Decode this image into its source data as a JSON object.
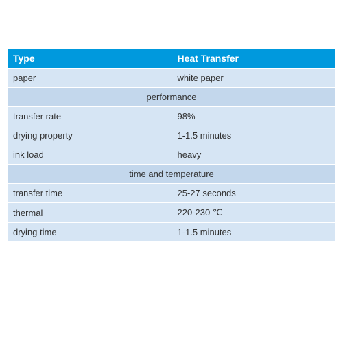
{
  "table": {
    "header": {
      "col1": "Type",
      "col2": "Heat Transfer"
    },
    "rows": [
      {
        "type": "data",
        "label": "paper",
        "value": "white paper"
      },
      {
        "type": "section",
        "label": "performance"
      },
      {
        "type": "data",
        "label": "transfer rate",
        "value": "98%"
      },
      {
        "type": "data",
        "label": "drying property",
        "value": "1-1.5 minutes"
      },
      {
        "type": "data",
        "label": "ink load",
        "value": "heavy"
      },
      {
        "type": "section",
        "label": "time and temperature"
      },
      {
        "type": "data",
        "label": "transfer time",
        "value": "25-27 seconds"
      },
      {
        "type": "data",
        "label": "thermal",
        "value": "220-230 ℃"
      },
      {
        "type": "data",
        "label": "drying time",
        "value": "1-1.5 minutes"
      }
    ],
    "colors": {
      "header_bg": "#0099dd",
      "header_text": "#ffffff",
      "light_bg": "#d6e5f4",
      "section_bg": "#c3d7ec",
      "text": "#333333",
      "border": "#ffffff"
    }
  }
}
